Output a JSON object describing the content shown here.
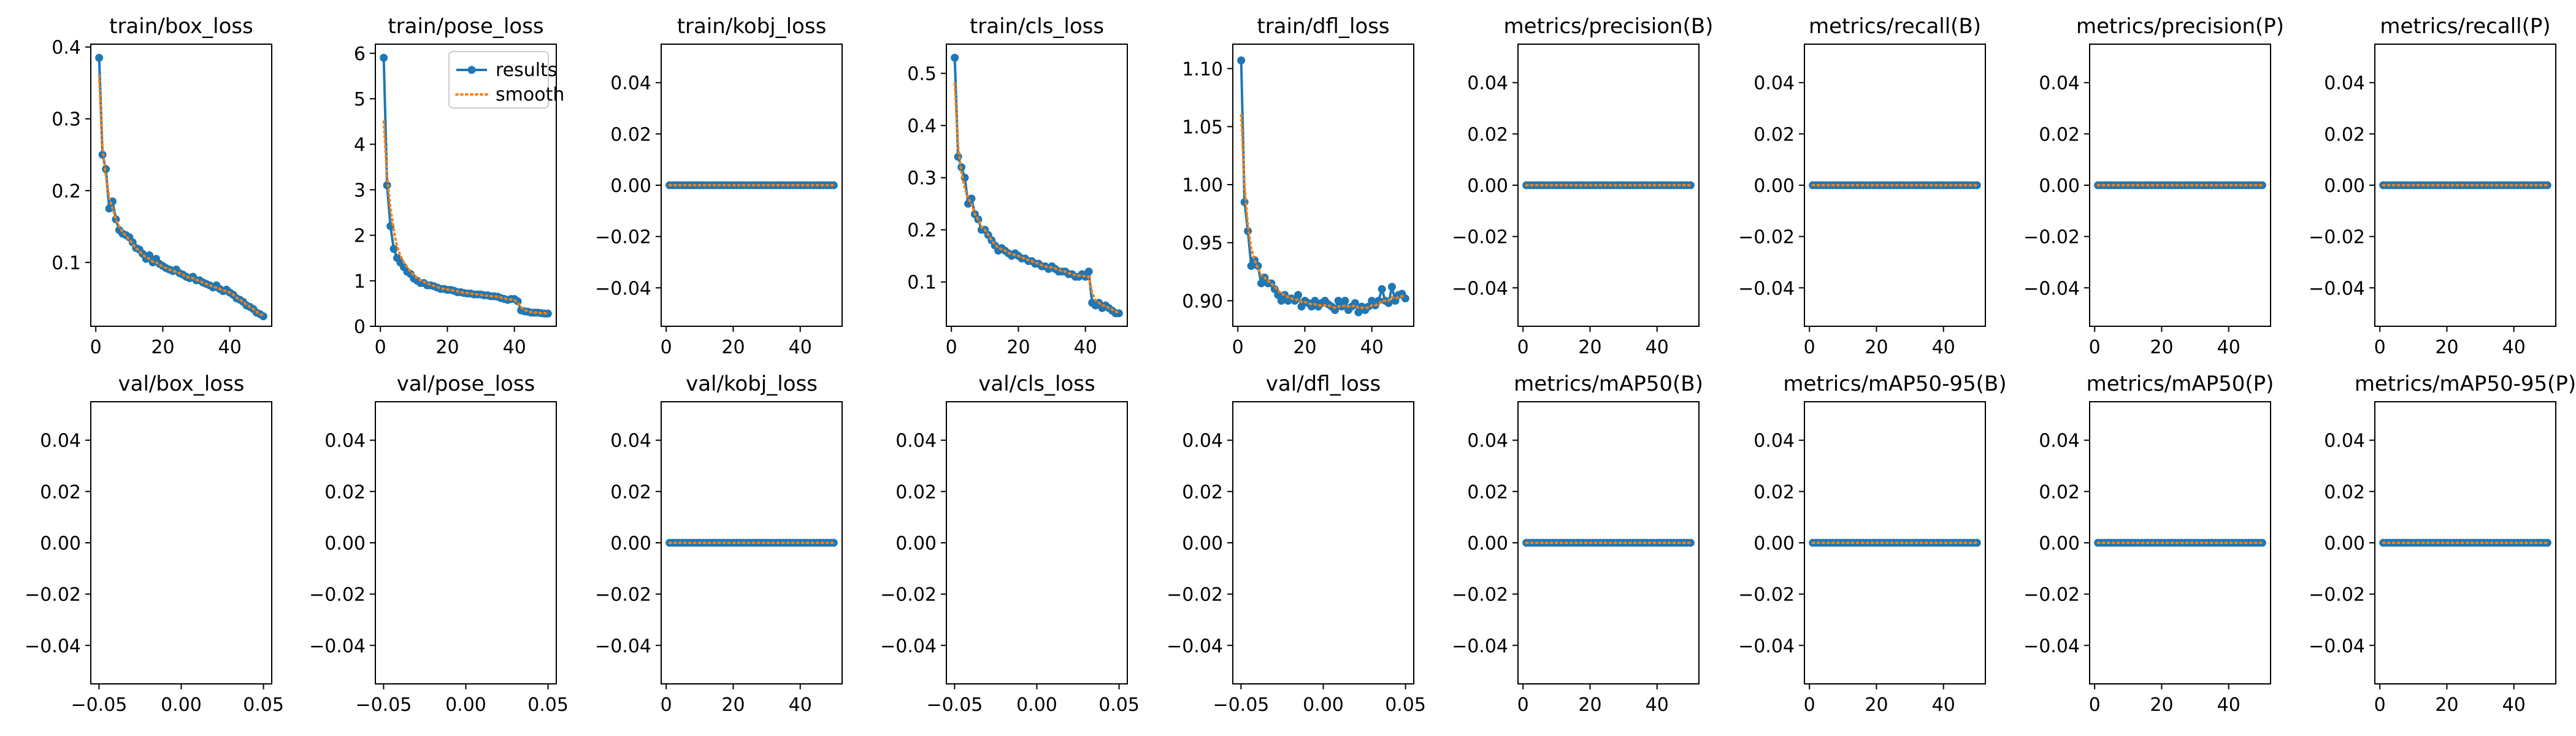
{
  "figure": {
    "type": "training-results-grid"
  },
  "legend": {
    "results": "results",
    "smooth": "smooth"
  },
  "colors": {
    "results": "#1f77b4",
    "smooth": "#ff7f0e",
    "axis": "#000000"
  },
  "chart_data": [
    {
      "title": "train/box_loss",
      "type": "line",
      "xlim": [
        -1.5,
        52.5
      ],
      "ylim": [
        0.011,
        0.404
      ],
      "xticks": [
        0,
        20,
        40
      ],
      "yticks": [
        0.1,
        0.2,
        0.3,
        0.4
      ],
      "xtick_labels": [
        "0",
        "20",
        "40"
      ],
      "ytick_labels": [
        "0.1",
        "0.2",
        "0.3",
        "0.4"
      ],
      "x": [
        1,
        2,
        3,
        4,
        5,
        6,
        7,
        8,
        9,
        10,
        11,
        12,
        13,
        14,
        15,
        16,
        17,
        18,
        19,
        20,
        21,
        22,
        23,
        24,
        25,
        26,
        27,
        28,
        29,
        30,
        31,
        32,
        33,
        34,
        35,
        36,
        37,
        38,
        39,
        40,
        41,
        42,
        43,
        44,
        45,
        46,
        47,
        48,
        49,
        50
      ],
      "results": [
        0.385,
        0.25,
        0.23,
        0.175,
        0.185,
        0.16,
        0.145,
        0.14,
        0.138,
        0.135,
        0.128,
        0.12,
        0.118,
        0.112,
        0.105,
        0.11,
        0.1,
        0.105,
        0.098,
        0.095,
        0.092,
        0.09,
        0.088,
        0.09,
        0.085,
        0.083,
        0.08,
        0.078,
        0.08,
        0.075,
        0.075,
        0.072,
        0.07,
        0.068,
        0.065,
        0.068,
        0.063,
        0.06,
        0.062,
        0.058,
        0.055,
        0.05,
        0.048,
        0.045,
        0.04,
        0.038,
        0.035,
        0.03,
        0.028,
        0.025
      ],
      "smooth": [
        0.36,
        0.26,
        0.22,
        0.19,
        0.175,
        0.16,
        0.15,
        0.142,
        0.137,
        0.132,
        0.126,
        0.12,
        0.116,
        0.111,
        0.107,
        0.105,
        0.101,
        0.1,
        0.097,
        0.094,
        0.092,
        0.09,
        0.088,
        0.087,
        0.085,
        0.083,
        0.08,
        0.079,
        0.078,
        0.076,
        0.074,
        0.072,
        0.07,
        0.068,
        0.066,
        0.065,
        0.063,
        0.061,
        0.06,
        0.058,
        0.055,
        0.051,
        0.048,
        0.045,
        0.041,
        0.038,
        0.035,
        0.031,
        0.028,
        0.026
      ]
    },
    {
      "title": "train/pose_loss",
      "type": "line",
      "xlim": [
        -1.5,
        52.5
      ],
      "ylim": [
        0.0,
        6.2
      ],
      "xticks": [
        0,
        20,
        40
      ],
      "yticks": [
        0,
        1,
        2,
        3,
        4,
        5,
        6
      ],
      "xtick_labels": [
        "0",
        "20",
        "40"
      ],
      "ytick_labels": [
        "0",
        "1",
        "2",
        "3",
        "4",
        "5",
        "6"
      ],
      "legend": true,
      "x": [
        1,
        2,
        3,
        4,
        5,
        6,
        7,
        8,
        9,
        10,
        11,
        12,
        13,
        14,
        15,
        16,
        17,
        18,
        19,
        20,
        21,
        22,
        23,
        24,
        25,
        26,
        27,
        28,
        29,
        30,
        31,
        32,
        33,
        34,
        35,
        36,
        37,
        38,
        39,
        40,
        41,
        42,
        43,
        44,
        45,
        46,
        47,
        48,
        49,
        50
      ],
      "results": [
        5.9,
        3.1,
        2.2,
        1.7,
        1.5,
        1.4,
        1.3,
        1.2,
        1.15,
        1.05,
        1.0,
        0.95,
        0.95,
        0.9,
        0.9,
        0.88,
        0.85,
        0.82,
        0.82,
        0.8,
        0.8,
        0.78,
        0.75,
        0.75,
        0.73,
        0.72,
        0.72,
        0.7,
        0.7,
        0.7,
        0.68,
        0.68,
        0.66,
        0.66,
        0.65,
        0.62,
        0.6,
        0.58,
        0.6,
        0.6,
        0.55,
        0.35,
        0.33,
        0.32,
        0.3,
        0.3,
        0.3,
        0.29,
        0.28,
        0.28
      ],
      "smooth": [
        4.5,
        3.3,
        2.6,
        2.1,
        1.75,
        1.55,
        1.4,
        1.3,
        1.2,
        1.12,
        1.06,
        1.01,
        0.98,
        0.94,
        0.91,
        0.89,
        0.86,
        0.84,
        0.82,
        0.81,
        0.8,
        0.78,
        0.77,
        0.75,
        0.74,
        0.73,
        0.72,
        0.71,
        0.7,
        0.69,
        0.68,
        0.67,
        0.66,
        0.66,
        0.65,
        0.63,
        0.61,
        0.6,
        0.59,
        0.58,
        0.52,
        0.42,
        0.36,
        0.33,
        0.31,
        0.3,
        0.3,
        0.29,
        0.29,
        0.28
      ]
    },
    {
      "title": "train/kobj_loss",
      "type": "line",
      "xlim": [
        -1.5,
        52.5
      ],
      "ylim": [
        -0.055,
        0.055
      ],
      "xticks": [
        0,
        20,
        40
      ],
      "yticks": [
        -0.04,
        -0.02,
        0.0,
        0.02,
        0.04
      ],
      "xtick_labels": [
        "0",
        "20",
        "40"
      ],
      "ytick_labels": [
        "−0.04",
        "−0.02",
        "0.00",
        "0.02",
        "0.04"
      ],
      "zeros": true
    },
    {
      "title": "train/cls_loss",
      "type": "line",
      "xlim": [
        -1.5,
        52.5
      ],
      "ylim": [
        0.015,
        0.556
      ],
      "xticks": [
        0,
        20,
        40
      ],
      "yticks": [
        0.1,
        0.2,
        0.3,
        0.4,
        0.5
      ],
      "xtick_labels": [
        "0",
        "20",
        "40"
      ],
      "ytick_labels": [
        "0.1",
        "0.2",
        "0.3",
        "0.4",
        "0.5"
      ],
      "x": [
        1,
        2,
        3,
        4,
        5,
        6,
        7,
        8,
        9,
        10,
        11,
        12,
        13,
        14,
        15,
        16,
        17,
        18,
        19,
        20,
        21,
        22,
        23,
        24,
        25,
        26,
        27,
        28,
        29,
        30,
        31,
        32,
        33,
        34,
        35,
        36,
        37,
        38,
        39,
        40,
        41,
        42,
        43,
        44,
        45,
        46,
        47,
        48,
        49,
        50
      ],
      "results": [
        0.53,
        0.34,
        0.32,
        0.3,
        0.25,
        0.26,
        0.23,
        0.22,
        0.2,
        0.2,
        0.19,
        0.18,
        0.17,
        0.16,
        0.165,
        0.16,
        0.155,
        0.15,
        0.155,
        0.15,
        0.145,
        0.145,
        0.14,
        0.14,
        0.135,
        0.135,
        0.13,
        0.13,
        0.125,
        0.13,
        0.125,
        0.12,
        0.12,
        0.12,
        0.115,
        0.115,
        0.11,
        0.11,
        0.115,
        0.11,
        0.12,
        0.06,
        0.055,
        0.06,
        0.05,
        0.055,
        0.05,
        0.045,
        0.04,
        0.04
      ],
      "smooth": [
        0.48,
        0.36,
        0.31,
        0.28,
        0.26,
        0.25,
        0.23,
        0.22,
        0.205,
        0.2,
        0.19,
        0.18,
        0.172,
        0.165,
        0.163,
        0.16,
        0.156,
        0.153,
        0.152,
        0.15,
        0.147,
        0.145,
        0.142,
        0.14,
        0.137,
        0.135,
        0.132,
        0.13,
        0.128,
        0.128,
        0.126,
        0.123,
        0.121,
        0.12,
        0.117,
        0.115,
        0.113,
        0.112,
        0.112,
        0.111,
        0.11,
        0.08,
        0.065,
        0.06,
        0.055,
        0.054,
        0.05,
        0.047,
        0.043,
        0.041
      ]
    },
    {
      "title": "train/dfl_loss",
      "type": "line",
      "xlim": [
        -1.5,
        52.5
      ],
      "ylim": [
        0.878,
        1.121
      ],
      "xticks": [
        0,
        20,
        40
      ],
      "yticks": [
        0.9,
        0.95,
        1.0,
        1.05,
        1.1
      ],
      "xtick_labels": [
        "0",
        "20",
        "40"
      ],
      "ytick_labels": [
        "0.90",
        "0.95",
        "1.00",
        "1.05",
        "1.10"
      ],
      "x": [
        1,
        2,
        3,
        4,
        5,
        6,
        7,
        8,
        9,
        10,
        11,
        12,
        13,
        14,
        15,
        16,
        17,
        18,
        19,
        20,
        21,
        22,
        23,
        24,
        25,
        26,
        27,
        28,
        29,
        30,
        31,
        32,
        33,
        34,
        35,
        36,
        37,
        38,
        39,
        40,
        41,
        42,
        43,
        44,
        45,
        46,
        47,
        48,
        49,
        50
      ],
      "results": [
        1.107,
        0.985,
        0.96,
        0.93,
        0.935,
        0.93,
        0.915,
        0.92,
        0.915,
        0.915,
        0.91,
        0.905,
        0.9,
        0.905,
        0.9,
        0.902,
        0.9,
        0.905,
        0.895,
        0.9,
        0.898,
        0.895,
        0.9,
        0.895,
        0.898,
        0.9,
        0.897,
        0.895,
        0.892,
        0.9,
        0.895,
        0.9,
        0.892,
        0.895,
        0.898,
        0.89,
        0.895,
        0.892,
        0.895,
        0.9,
        0.896,
        0.9,
        0.91,
        0.9,
        0.898,
        0.912,
        0.9,
        0.905,
        0.906,
        0.902
      ],
      "smooth": [
        1.06,
        1.0,
        0.965,
        0.945,
        0.935,
        0.928,
        0.922,
        0.92,
        0.917,
        0.915,
        0.912,
        0.909,
        0.906,
        0.905,
        0.903,
        0.902,
        0.901,
        0.901,
        0.899,
        0.899,
        0.898,
        0.897,
        0.897,
        0.896,
        0.896,
        0.896,
        0.896,
        0.895,
        0.894,
        0.895,
        0.895,
        0.896,
        0.895,
        0.895,
        0.896,
        0.894,
        0.894,
        0.894,
        0.894,
        0.896,
        0.896,
        0.897,
        0.9,
        0.9,
        0.9,
        0.903,
        0.902,
        0.903,
        0.904,
        0.903
      ]
    },
    {
      "title": "metrics/precision(B)",
      "type": "line",
      "xlim": [
        -1.5,
        52.5
      ],
      "ylim": [
        -0.055,
        0.055
      ],
      "xticks": [
        0,
        20,
        40
      ],
      "yticks": [
        -0.04,
        -0.02,
        0.0,
        0.02,
        0.04
      ],
      "xtick_labels": [
        "0",
        "20",
        "40"
      ],
      "ytick_labels": [
        "−0.04",
        "−0.02",
        "0.00",
        "0.02",
        "0.04"
      ],
      "zeros": true
    },
    {
      "title": "metrics/recall(B)",
      "type": "line",
      "xlim": [
        -1.5,
        52.5
      ],
      "ylim": [
        -0.055,
        0.055
      ],
      "xticks": [
        0,
        20,
        40
      ],
      "yticks": [
        -0.04,
        -0.02,
        0.0,
        0.02,
        0.04
      ],
      "xtick_labels": [
        "0",
        "20",
        "40"
      ],
      "ytick_labels": [
        "−0.04",
        "−0.02",
        "0.00",
        "0.02",
        "0.04"
      ],
      "zeros": true
    },
    {
      "title": "metrics/precision(P)",
      "type": "line",
      "xlim": [
        -1.5,
        52.5
      ],
      "ylim": [
        -0.055,
        0.055
      ],
      "xticks": [
        0,
        20,
        40
      ],
      "yticks": [
        -0.04,
        -0.02,
        0.0,
        0.02,
        0.04
      ],
      "xtick_labels": [
        "0",
        "20",
        "40"
      ],
      "ytick_labels": [
        "−0.04",
        "−0.02",
        "0.00",
        "0.02",
        "0.04"
      ],
      "zeros": true
    },
    {
      "title": "metrics/recall(P)",
      "type": "line",
      "xlim": [
        -1.5,
        52.5
      ],
      "ylim": [
        -0.055,
        0.055
      ],
      "xticks": [
        0,
        20,
        40
      ],
      "yticks": [
        -0.04,
        -0.02,
        0.0,
        0.02,
        0.04
      ],
      "xtick_labels": [
        "0",
        "20",
        "40"
      ],
      "ytick_labels": [
        "−0.04",
        "−0.02",
        "0.00",
        "0.02",
        "0.04"
      ],
      "zeros": true
    },
    {
      "title": "val/box_loss",
      "type": "line",
      "xlim": [
        -0.055,
        0.055
      ],
      "ylim": [
        -0.055,
        0.055
      ],
      "xticks": [
        -0.05,
        0.0,
        0.05
      ],
      "yticks": [
        -0.04,
        -0.02,
        0.0,
        0.02,
        0.04
      ],
      "xtick_labels": [
        "−0.05",
        "0.00",
        "0.05"
      ],
      "ytick_labels": [
        "−0.04",
        "−0.02",
        "0.00",
        "0.02",
        "0.04"
      ],
      "empty": true
    },
    {
      "title": "val/pose_loss",
      "type": "line",
      "xlim": [
        -0.055,
        0.055
      ],
      "ylim": [
        -0.055,
        0.055
      ],
      "xticks": [
        -0.05,
        0.0,
        0.05
      ],
      "yticks": [
        -0.04,
        -0.02,
        0.0,
        0.02,
        0.04
      ],
      "xtick_labels": [
        "−0.05",
        "0.00",
        "0.05"
      ],
      "ytick_labels": [
        "−0.04",
        "−0.02",
        "0.00",
        "0.02",
        "0.04"
      ],
      "empty": true
    },
    {
      "title": "val/kobj_loss",
      "type": "line",
      "xlim": [
        -1.5,
        52.5
      ],
      "ylim": [
        -0.055,
        0.055
      ],
      "xticks": [
        0,
        20,
        40
      ],
      "yticks": [
        -0.04,
        -0.02,
        0.0,
        0.02,
        0.04
      ],
      "xtick_labels": [
        "0",
        "20",
        "40"
      ],
      "ytick_labels": [
        "−0.04",
        "−0.02",
        "0.00",
        "0.02",
        "0.04"
      ],
      "zeros": true
    },
    {
      "title": "val/cls_loss",
      "type": "line",
      "xlim": [
        -0.055,
        0.055
      ],
      "ylim": [
        -0.055,
        0.055
      ],
      "xticks": [
        -0.05,
        0.0,
        0.05
      ],
      "yticks": [
        -0.04,
        -0.02,
        0.0,
        0.02,
        0.04
      ],
      "xtick_labels": [
        "−0.05",
        "0.00",
        "0.05"
      ],
      "ytick_labels": [
        "−0.04",
        "−0.02",
        "0.00",
        "0.02",
        "0.04"
      ],
      "empty": true
    },
    {
      "title": "val/dfl_loss",
      "type": "line",
      "xlim": [
        -0.055,
        0.055
      ],
      "ylim": [
        -0.055,
        0.055
      ],
      "xticks": [
        -0.05,
        0.0,
        0.05
      ],
      "yticks": [
        -0.04,
        -0.02,
        0.0,
        0.02,
        0.04
      ],
      "xtick_labels": [
        "−0.05",
        "0.00",
        "0.05"
      ],
      "ytick_labels": [
        "−0.04",
        "−0.02",
        "0.00",
        "0.02",
        "0.04"
      ],
      "empty": true
    },
    {
      "title": "metrics/mAP50(B)",
      "type": "line",
      "xlim": [
        -1.5,
        52.5
      ],
      "ylim": [
        -0.055,
        0.055
      ],
      "xticks": [
        0,
        20,
        40
      ],
      "yticks": [
        -0.04,
        -0.02,
        0.0,
        0.02,
        0.04
      ],
      "xtick_labels": [
        "0",
        "20",
        "40"
      ],
      "ytick_labels": [
        "−0.04",
        "−0.02",
        "0.00",
        "0.02",
        "0.04"
      ],
      "zeros": true
    },
    {
      "title": "metrics/mAP50-95(B)",
      "type": "line",
      "xlim": [
        -1.5,
        52.5
      ],
      "ylim": [
        -0.055,
        0.055
      ],
      "xticks": [
        0,
        20,
        40
      ],
      "yticks": [
        -0.04,
        -0.02,
        0.0,
        0.02,
        0.04
      ],
      "xtick_labels": [
        "0",
        "20",
        "40"
      ],
      "ytick_labels": [
        "−0.04",
        "−0.02",
        "0.00",
        "0.02",
        "0.04"
      ],
      "zeros": true
    },
    {
      "title": "metrics/mAP50(P)",
      "type": "line",
      "xlim": [
        -1.5,
        52.5
      ],
      "ylim": [
        -0.055,
        0.055
      ],
      "xticks": [
        0,
        20,
        40
      ],
      "yticks": [
        -0.04,
        -0.02,
        0.0,
        0.02,
        0.04
      ],
      "xtick_labels": [
        "0",
        "20",
        "40"
      ],
      "ytick_labels": [
        "−0.04",
        "−0.02",
        "0.00",
        "0.02",
        "0.04"
      ],
      "zeros": true
    },
    {
      "title": "metrics/mAP50-95(P)",
      "type": "line",
      "xlim": [
        -1.5,
        52.5
      ],
      "ylim": [
        -0.055,
        0.055
      ],
      "xticks": [
        0,
        20,
        40
      ],
      "yticks": [
        -0.04,
        -0.02,
        0.0,
        0.02,
        0.04
      ],
      "xtick_labels": [
        "0",
        "20",
        "40"
      ],
      "ytick_labels": [
        "−0.04",
        "−0.02",
        "0.00",
        "0.02",
        "0.04"
      ],
      "zeros": true
    }
  ]
}
